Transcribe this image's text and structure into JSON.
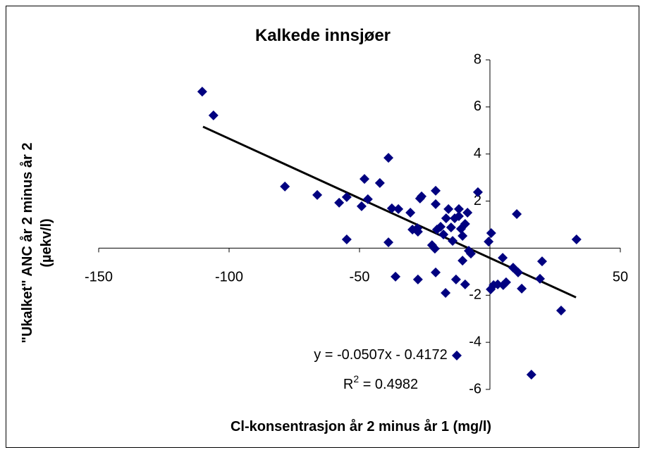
{
  "chart_data": {
    "type": "scatter",
    "title": "Kalkede innsjøer",
    "x_label": "Cl-konsentrasjon år 2 minus år 1 (mg/l)",
    "y_label": [
      "\"Ukalket\" ANC år 2 minus år 2",
      "(µekv/l)"
    ],
    "xlim": [
      -150,
      50
    ],
    "ylim": [
      -6,
      8
    ],
    "xticks": [
      -150,
      -100,
      -50,
      50
    ],
    "yticks": [
      -6,
      -4,
      -2,
      2,
      4,
      6,
      8
    ],
    "series": [
      {
        "name": "Kalkede innsjøer",
        "color": "#000080",
        "x": [
          -110.3,
          -106,
          -78.6,
          -66.2,
          -57.8,
          -54.9,
          -54.9,
          -48.1,
          -49.2,
          -46.8,
          -42.2,
          -38.9,
          -38.9,
          -37.6,
          -36.2,
          -35.1,
          -30.5,
          -29.7,
          -27.8,
          -27.6,
          -26.8,
          -26.2,
          -27.6,
          -20.8,
          -20.8,
          -22.2,
          -21.1,
          -20.8,
          -20.3,
          -18.9,
          -17.8,
          -17.0,
          -16.8,
          -15.9,
          -14.9,
          -13.5,
          -14.3,
          -13.0,
          -11.9,
          -11.9,
          -11.1,
          -10.5,
          -10.5,
          -9.5,
          -8.6,
          -9.5,
          -8.1,
          -7.3,
          -12.7,
          -4.6,
          0.5,
          -0.5,
          0.3,
          1.4,
          3.0,
          4.9,
          5.1,
          6.2,
          8.9,
          10.3,
          10.8,
          12.2,
          19.2,
          20.0,
          15.9,
          27.3,
          33.2
        ],
        "values": [
          6.65,
          5.64,
          2.62,
          2.26,
          1.93,
          2.17,
          0.37,
          2.94,
          1.78,
          2.08,
          2.77,
          3.84,
          0.25,
          1.69,
          -1.21,
          1.66,
          1.51,
          0.79,
          0.85,
          0.7,
          2.11,
          2.2,
          -1.33,
          2.44,
          1.87,
          0.13,
          -0.02,
          -1.03,
          0.79,
          0.91,
          0.58,
          -1.9,
          1.27,
          1.66,
          0.88,
          1.27,
          0.31,
          -1.33,
          1.36,
          1.66,
          0.82,
          0.52,
          -0.53,
          1.03,
          1.51,
          -1.54,
          -0.11,
          -0.23,
          -4.56,
          2.38,
          0.64,
          0.28,
          -1.75,
          -1.57,
          -1.54,
          -0.41,
          -1.57,
          -1.45,
          -0.83,
          1.45,
          -1.03,
          -1.72,
          -1.3,
          -0.56,
          -5.37,
          -2.65,
          0.37
        ]
      }
    ],
    "trendline": {
      "slope": -0.0507,
      "intercept": -0.4172,
      "xlim": [
        -110,
        33
      ],
      "color": "#000000",
      "equation": "y = -0.0507x - 0.4172",
      "r2_label": [
        "R",
        "2",
        " = 0.4982"
      ]
    }
  }
}
